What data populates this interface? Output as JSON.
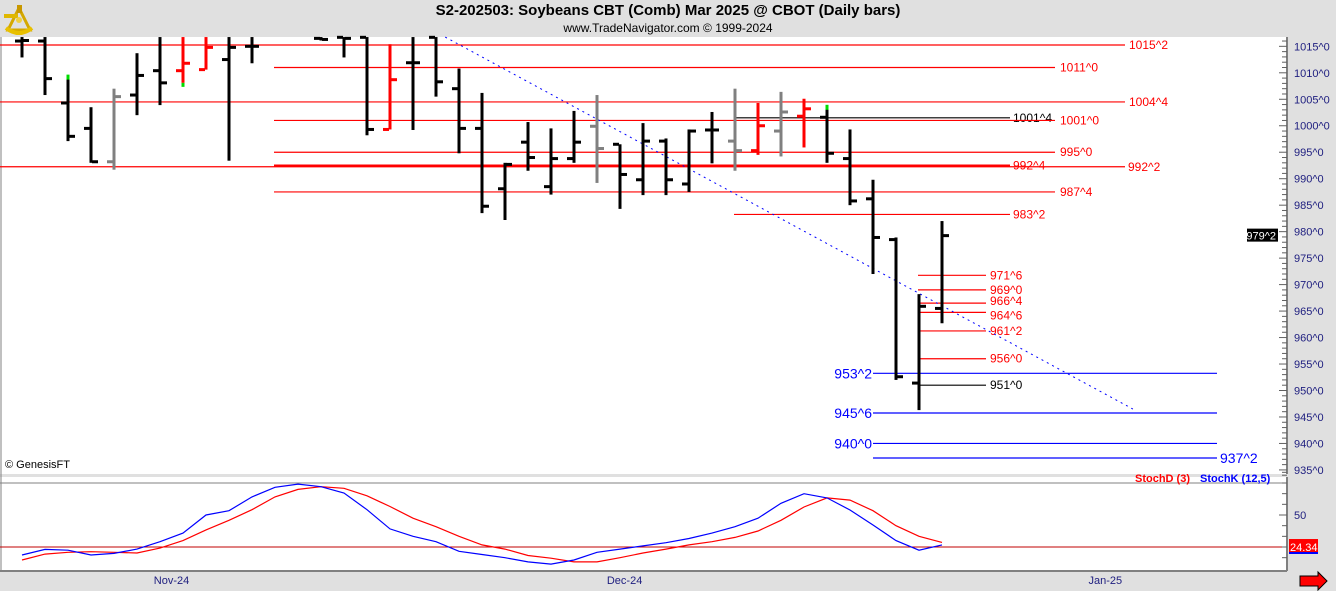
{
  "header": {
    "title": "S2-202503:  Soybeans CBT (Comb) Mar 2025 @ CBOT  (Daily bars)",
    "subtitle": "www.TradeNavigator.com © 1999-2024",
    "logo": "sextant-logo"
  },
  "copyright": "© GenesisFT",
  "colors": {
    "up": "#000000",
    "down": "#ff0000",
    "neutral": "#808080",
    "tip": "#00dd00",
    "stochK": "#0000ff",
    "stochD": "#ff0000",
    "levelRed": "#ff0000",
    "levelBlue": "#0000ff",
    "trendline": "#0000ff"
  },
  "chart_data": [
    {
      "type": "ohlc",
      "title": "S2-202503:  Soybeans CBT (Comb) Mar 2025 @ CBOT  (Daily bars)",
      "ylim": [
        933,
        1016.75
      ],
      "y_ticks": [
        "1015^0",
        "1010^0",
        "1005^0",
        "1000^0",
        "995^0",
        "990^0",
        "985^0",
        "980^0",
        "975^0",
        "970^0",
        "965^0",
        "960^0",
        "955^0",
        "950^0",
        "945^0",
        "940^0",
        "935^0"
      ],
      "y_tick_values": [
        1015,
        1010,
        1005,
        1000,
        995,
        990,
        985,
        980,
        975,
        970,
        965,
        960,
        955,
        950,
        945,
        940,
        935
      ],
      "x_labels": [
        {
          "label": "Nov-24",
          "slot": 6.5
        },
        {
          "label": "Dec-24",
          "slot": 26.2
        },
        {
          "label": "Jan-25",
          "slot": 47.1
        }
      ],
      "last_price": {
        "label": "979^2",
        "value": 979.25
      },
      "bars": [
        {
          "slot": 0,
          "o": 1016.0,
          "h": 1016.75,
          "l": 1012.9,
          "c": 1016.1,
          "color": "up"
        },
        {
          "slot": 1,
          "o": 1016.0,
          "h": 1016.75,
          "l": 1005.8,
          "c": 1008.9,
          "color": "up"
        },
        {
          "slot": 2,
          "o": 1004.3,
          "h": 1008.9,
          "l": 997.1,
          "c": 998.0,
          "color": "up",
          "tip": "top"
        },
        {
          "slot": 3,
          "o": 999.5,
          "h": 1003.5,
          "l": 993.0,
          "c": 993.2,
          "color": "up"
        },
        {
          "slot": 4,
          "o": 993.2,
          "h": 1007.0,
          "l": 991.7,
          "c": 1005.5,
          "color": "neutral"
        },
        {
          "slot": 5,
          "o": 1005.8,
          "h": 1013.7,
          "l": 1002.0,
          "c": 1009.5,
          "color": "up"
        },
        {
          "slot": 6,
          "o": 1010.4,
          "h": 1016.75,
          "l": 1003.9,
          "c": 1008.1,
          "color": "up"
        },
        {
          "slot": 7,
          "o": 1010.4,
          "h": 1016.75,
          "l": 1008.1,
          "c": 1011.8,
          "color": "down",
          "tip": "bottom"
        },
        {
          "slot": 8,
          "o": 1010.6,
          "h": 1016.75,
          "l": 1010.6,
          "c": 1014.8,
          "color": "down"
        },
        {
          "slot": 9,
          "o": 1012.5,
          "h": 1016.75,
          "l": 993.4,
          "c": 1014.8,
          "color": "up"
        },
        {
          "slot": 10,
          "o": 1015.0,
          "h": 1016.75,
          "l": 1011.8,
          "c": 1015.0,
          "color": "up"
        },
        {
          "slot": 13,
          "o": 1016.5,
          "h": 1016.75,
          "l": 1016.1,
          "c": 1016.3,
          "color": "up"
        },
        {
          "slot": 14,
          "o": 1016.7,
          "h": 1016.75,
          "l": 1012.9,
          "c": 1016.5,
          "color": "up"
        },
        {
          "slot": 15,
          "o": 1016.7,
          "h": 1016.75,
          "l": 998.2,
          "c": 999.3,
          "color": "up"
        },
        {
          "slot": 16,
          "o": 999.3,
          "h": 1015.4,
          "l": 999.3,
          "c": 1008.7,
          "color": "down"
        },
        {
          "slot": 17,
          "o": 1011.9,
          "h": 1016.75,
          "l": 999.2,
          "c": 1011.9,
          "color": "up"
        },
        {
          "slot": 18,
          "o": 1016.7,
          "h": 1016.75,
          "l": 1005.5,
          "c": 1008.3,
          "color": "up"
        },
        {
          "slot": 19,
          "o": 1007.0,
          "h": 1010.8,
          "l": 994.8,
          "c": 999.5,
          "color": "up"
        },
        {
          "slot": 20,
          "o": 999.5,
          "h": 1006.2,
          "l": 983.5,
          "c": 984.8,
          "color": "up"
        },
        {
          "slot": 21,
          "o": 988.1,
          "h": 993.0,
          "l": 982.2,
          "c": 992.7,
          "color": "up"
        },
        {
          "slot": 22,
          "o": 996.9,
          "h": 1000.7,
          "l": 991.5,
          "c": 994.0,
          "color": "up"
        },
        {
          "slot": 23,
          "o": 988.5,
          "h": 999.5,
          "l": 987.0,
          "c": 993.8,
          "color": "up"
        },
        {
          "slot": 24,
          "o": 993.8,
          "h": 1002.8,
          "l": 993.0,
          "c": 996.9,
          "color": "up"
        },
        {
          "slot": 25,
          "o": 999.9,
          "h": 1005.8,
          "l": 989.2,
          "c": 995.7,
          "color": "neutral"
        },
        {
          "slot": 26,
          "o": 996.5,
          "h": 996.5,
          "l": 984.3,
          "c": 990.8,
          "color": "up"
        },
        {
          "slot": 27,
          "o": 989.8,
          "h": 1000.5,
          "l": 986.9,
          "c": 997.1,
          "color": "up"
        },
        {
          "slot": 28,
          "o": 997.1,
          "h": 997.6,
          "l": 986.9,
          "c": 989.8,
          "color": "up"
        },
        {
          "slot": 29,
          "o": 989.0,
          "h": 999.3,
          "l": 987.5,
          "c": 999.0,
          "color": "up"
        },
        {
          "slot": 30,
          "o": 999.2,
          "h": 1002.6,
          "l": 992.9,
          "c": 999.2,
          "color": "up"
        },
        {
          "slot": 31,
          "o": 997.1,
          "h": 1007.0,
          "l": 991.5,
          "c": 995.3,
          "color": "neutral"
        },
        {
          "slot": 32,
          "o": 995.3,
          "h": 1004.3,
          "l": 994.5,
          "c": 1000.0,
          "color": "down"
        },
        {
          "slot": 33,
          "o": 999.0,
          "h": 1006.4,
          "l": 994.2,
          "c": 1002.6,
          "color": "neutral"
        },
        {
          "slot": 34,
          "o": 1001.8,
          "h": 1005.1,
          "l": 995.9,
          "c": 1003.2,
          "color": "down"
        },
        {
          "slot": 35,
          "o": 1001.6,
          "h": 1003.2,
          "l": 993.0,
          "c": 994.8,
          "color": "up",
          "tip": "top"
        },
        {
          "slot": 36,
          "o": 993.8,
          "h": 999.3,
          "l": 985.0,
          "c": 985.8,
          "color": "up"
        },
        {
          "slot": 37,
          "o": 986.2,
          "h": 989.8,
          "l": 972.0,
          "c": 978.9,
          "color": "up"
        },
        {
          "slot": 38,
          "o": 978.5,
          "h": 978.9,
          "l": 952.0,
          "c": 952.6,
          "color": "up"
        },
        {
          "slot": 39,
          "o": 951.4,
          "h": 968.2,
          "l": 946.3,
          "c": 965.9,
          "color": "up"
        },
        {
          "slot": 40,
          "o": 965.5,
          "h": 982.0,
          "l": 962.7,
          "c": 979.25,
          "color": "up"
        }
      ],
      "levels": [
        {
          "label": "1015^2",
          "value": 1015.25,
          "color": "red"
        },
        {
          "label": "1011^0",
          "value": 1011.0,
          "color": "red"
        },
        {
          "label": "1004^4",
          "value": 1004.5,
          "color": "red"
        },
        {
          "label": "1001^4",
          "value": 1001.5,
          "color": "black"
        },
        {
          "label": "1001^0",
          "value": 1001.0,
          "color": "red"
        },
        {
          "label": "995^0",
          "value": 995.0,
          "color": "red"
        },
        {
          "label": "992^4",
          "value": 992.5,
          "color": "red"
        },
        {
          "label": "992^2",
          "value": 992.25,
          "color": "red"
        },
        {
          "label": "987^4",
          "value": 987.5,
          "color": "red"
        },
        {
          "label": "983^2",
          "value": 983.25,
          "color": "red"
        },
        {
          "label": "971^6",
          "value": 971.75,
          "color": "red"
        },
        {
          "label": "969^0",
          "value": 969.0,
          "color": "red"
        },
        {
          "label": "966^4",
          "value": 966.5,
          "color": "red"
        },
        {
          "label": "964^6",
          "value": 964.75,
          "color": "red"
        },
        {
          "label": "961^2",
          "value": 961.25,
          "color": "red"
        },
        {
          "label": "956^0",
          "value": 956.0,
          "color": "red"
        },
        {
          "label": "951^0",
          "value": 951.0,
          "color": "black"
        },
        {
          "label": "953^2",
          "value": 953.25,
          "color": "blue"
        },
        {
          "label": "945^6",
          "value": 945.75,
          "color": "blue"
        },
        {
          "label": "940^0",
          "value": 940.0,
          "color": "blue"
        },
        {
          "label": "937^2",
          "value": 937.25,
          "color": "blue"
        }
      ],
      "trendline": {
        "from_slot": 18.4,
        "from_price": 1016.75,
        "to_slot": 48.3,
        "to_price": 946.5
      }
    },
    {
      "type": "line",
      "series": [
        {
          "name": "StochD (3)",
          "color": "#ff0000",
          "values": [
            7.8,
            13.4,
            15,
            15.6,
            15,
            14.4,
            19,
            26,
            36,
            45,
            55,
            67,
            74,
            76.5,
            75,
            68,
            58,
            47,
            39,
            30,
            22,
            18,
            12,
            9.5,
            6,
            6,
            10,
            14.4,
            18,
            22,
            25,
            29,
            35,
            45,
            57.5,
            66,
            64,
            54,
            40,
            30,
            24.34
          ]
        },
        {
          "name": "StochK (12,5)",
          "color": "#0000ff",
          "values": [
            12.5,
            17.8,
            17,
            12.5,
            14,
            18,
            25,
            33,
            50,
            54,
            67,
            76,
            79,
            76.5,
            70.6,
            55,
            37,
            30,
            25,
            16,
            13,
            10,
            6,
            4,
            7.8,
            15,
            18,
            21,
            24,
            28,
            33,
            39,
            47,
            61,
            70,
            66,
            54.7,
            40.6,
            26,
            17,
            22
          ]
        }
      ],
      "ylim": [
        0,
        100
      ],
      "reference_lines": [
        80,
        20
      ],
      "y_ticks": [
        "50"
      ],
      "last_value": "24.34"
    }
  ]
}
